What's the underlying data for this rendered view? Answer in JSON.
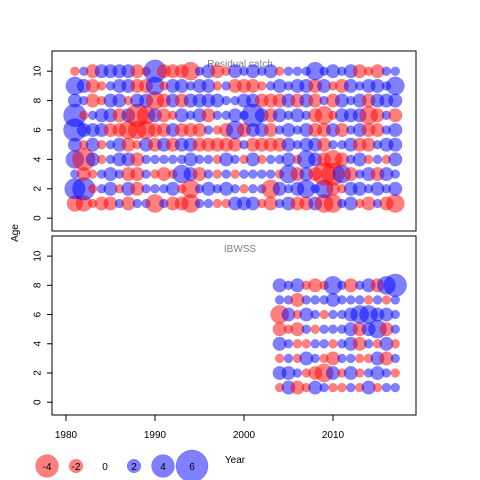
{
  "chart_data": {
    "type": "scatter",
    "subtype": "bubble-residual-plot",
    "ylabel": "Age",
    "xlabel": "Year",
    "xlim": [
      1979,
      2019
    ],
    "ylim": [
      -0.5,
      11
    ],
    "x_ticks": [
      1980,
      1990,
      2000,
      2010
    ],
    "y_ticks": [
      0,
      2,
      4,
      6,
      8,
      10
    ],
    "colors": {
      "positive": "#0000FF",
      "negative": "#FF0000",
      "fill_alpha": 0.5
    },
    "legend": {
      "placement": "bottom-left",
      "entries": [
        {
          "label": "-4",
          "value": -4
        },
        {
          "label": "-2",
          "value": -2
        },
        {
          "label": "0",
          "value": 0
        },
        {
          "label": "2",
          "value": 2
        },
        {
          "label": "4",
          "value": 4
        },
        {
          "label": "6",
          "value": 6
        }
      ]
    },
    "panels": [
      {
        "title": "Residual catch",
        "years": [
          1981,
          2017
        ],
        "ages": [
          1,
          10
        ],
        "residuals": [
          [
            -2.5,
            -2.5,
            -1,
            -2,
            -2,
            1,
            -2,
            1,
            1,
            -3,
            1,
            -2,
            -2,
            -3,
            1,
            1,
            -1,
            -1,
            2,
            2,
            2,
            -1,
            -2,
            1,
            2,
            -2,
            -2,
            2,
            -3,
            -3,
            1,
            2,
            -1,
            -2,
            1,
            -2,
            -3
          ],
          [
            3.5,
            4,
            -1,
            1,
            2,
            -1,
            2,
            -2,
            1,
            1,
            1,
            2,
            -1,
            -3,
            1,
            2,
            1,
            2,
            1,
            -1,
            1,
            1,
            -3,
            2,
            1,
            2,
            3,
            1,
            3,
            -2,
            -1,
            2,
            2,
            1,
            2,
            1,
            2
          ],
          [
            1,
            -2,
            -1,
            1,
            2,
            1,
            -2,
            -2,
            1,
            -1,
            -2,
            -1,
            3,
            2,
            -2,
            1,
            -1,
            1,
            -1,
            1,
            1,
            1,
            1,
            -1,
            3,
            -2,
            2,
            -2,
            -4,
            -4,
            3,
            -2,
            1,
            2,
            -2,
            2,
            1
          ],
          [
            3,
            -4,
            2,
            -1,
            1,
            2,
            2,
            -2,
            1,
            1,
            1,
            1,
            1,
            2,
            1,
            1,
            -1,
            2,
            1,
            -1,
            2,
            -1,
            1,
            1,
            2,
            -1,
            3,
            2,
            -2,
            -3,
            -2,
            1,
            2,
            -1,
            1,
            -1,
            2
          ],
          [
            2,
            -1,
            2,
            -1,
            1,
            2,
            -2,
            -1,
            2,
            -2,
            2,
            -2,
            2,
            2,
            -2,
            -2,
            -2,
            -2,
            -2,
            1,
            -2,
            -2,
            -2,
            -2,
            2,
            1,
            2,
            2,
            -2,
            1,
            1,
            2,
            -2,
            -2,
            1,
            2,
            2
          ],
          [
            4,
            2,
            2,
            2,
            -2,
            -2,
            -3,
            -3,
            -3,
            -2,
            -2,
            2,
            -2,
            -2,
            -2,
            1,
            -1,
            -2,
            3,
            -2,
            2,
            2,
            -2,
            1,
            2,
            1,
            2,
            -2,
            -2,
            2,
            -2,
            1,
            2,
            -2,
            -2,
            1,
            2
          ],
          [
            4,
            -1,
            1,
            2,
            2,
            -2,
            2,
            -4,
            -3,
            2,
            -2,
            -1,
            2,
            1,
            2,
            -2,
            1,
            1,
            2,
            1,
            4,
            2,
            -2,
            2,
            1,
            2,
            1,
            -2,
            -3,
            -1,
            2,
            2,
            2,
            -3,
            -2,
            1,
            -2
          ],
          [
            2,
            1,
            -2,
            -1,
            2,
            2,
            -1,
            2,
            2,
            -3,
            -2,
            2,
            -2,
            2,
            2,
            2,
            2,
            1,
            1,
            2,
            2,
            -2,
            -2,
            -2,
            2,
            -2,
            2,
            -2,
            1,
            -2,
            2,
            1,
            2,
            -2,
            2,
            2,
            2
          ],
          [
            3,
            2,
            -2,
            -1,
            1,
            2,
            2,
            -2,
            -2,
            3,
            -1,
            2,
            2,
            1,
            2,
            2,
            -1,
            1,
            -2,
            -2,
            -2,
            -1,
            1,
            2,
            1,
            2,
            2,
            -2,
            2,
            -1,
            -2,
            2,
            1,
            2,
            2,
            1,
            3
          ],
          [
            -1,
            1,
            -2,
            2,
            2,
            2,
            2,
            -2,
            -1,
            4,
            -2,
            -2,
            -2,
            -3,
            1,
            2,
            -2,
            -1,
            2,
            1,
            2,
            1,
            2,
            -1,
            1,
            1,
            1,
            3,
            1,
            2,
            1,
            2,
            -2,
            -1,
            -2,
            1,
            1
          ]
        ]
      },
      {
        "title": "IBWSS",
        "years": [
          2004,
          2017
        ],
        "ages": [
          1,
          8
        ],
        "residuals": [
          [
            -1,
            2,
            -2,
            -1,
            2,
            1,
            -1,
            -1,
            1,
            -1,
            2,
            -1,
            1,
            1
          ],
          [
            2,
            2,
            1,
            -1,
            -2,
            -3,
            2,
            -1,
            2,
            -1,
            1,
            2,
            1,
            -1
          ],
          [
            -1,
            1,
            -1,
            2,
            1,
            -1,
            -2,
            1,
            1,
            -1,
            -1,
            2,
            -2,
            1
          ],
          [
            2,
            1,
            -1,
            -1,
            1,
            1,
            -1,
            1,
            2,
            -2,
            1,
            -1,
            2,
            -1
          ],
          [
            -2,
            -1,
            -2,
            1,
            -1,
            1,
            1,
            1,
            2,
            -2,
            2,
            3,
            -2,
            1
          ],
          [
            -3,
            2,
            -1,
            2,
            1,
            -1,
            1,
            1,
            2,
            3,
            3,
            2,
            2,
            1
          ],
          [
            1,
            1,
            -2,
            1,
            1,
            1,
            2,
            1,
            1,
            1,
            -1,
            1,
            -1,
            1
          ],
          [
            2,
            1,
            2,
            -1,
            -2,
            -1,
            3,
            1,
            -2,
            1,
            2,
            -2,
            3,
            4
          ]
        ]
      }
    ]
  }
}
